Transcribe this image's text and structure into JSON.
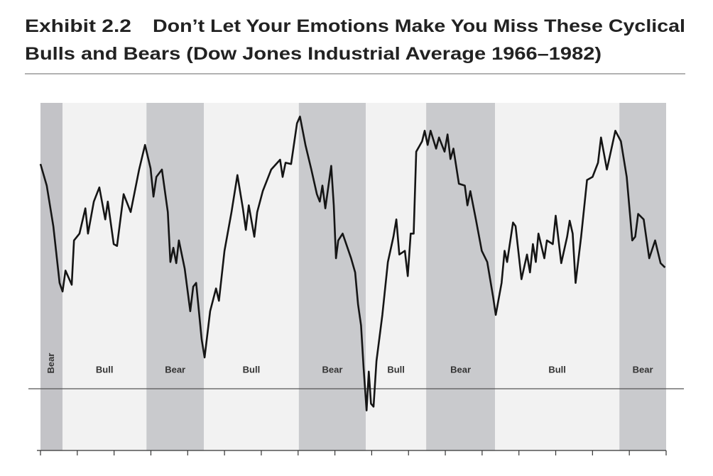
{
  "chart_data": {
    "type": "line",
    "exhibit": "Exhibit 2.2",
    "title_lines": [
      "Don’t Let Your Emotions Make You Miss These Cyclical",
      "Bulls and Bears (Dow Jones Industrial Average 1966–1982)"
    ],
    "regions": [
      {
        "label": "Bear",
        "start": 1966,
        "end": 1966.6,
        "color": "#c3c3c7"
      },
      {
        "label": "Bull",
        "start": 1966.6,
        "end": 1968.88,
        "color": "#f2f2f2"
      },
      {
        "label": "Bear",
        "start": 1968.88,
        "end": 1970.44,
        "color": "#c9cacd"
      },
      {
        "label": "Bull",
        "start": 1970.44,
        "end": 1973.02,
        "color": "#f2f2f2"
      },
      {
        "label": "Bear",
        "start": 1973.02,
        "end": 1974.84,
        "color": "#c9cacd"
      },
      {
        "label": "Bull",
        "start": 1974.84,
        "end": 1976.48,
        "color": "#f2f2f2"
      },
      {
        "label": "Bear",
        "start": 1976.48,
        "end": 1978.35,
        "color": "#c9cacd"
      },
      {
        "label": "Bull",
        "start": 1978.35,
        "end": 1981.73,
        "color": "#f2f2f2"
      },
      {
        "label": "Bear",
        "start": 1981.73,
        "end": 1983,
        "color": "#c9cacd"
      }
    ],
    "x": [
      1966.0,
      1966.17,
      1966.35,
      1966.52,
      1966.6,
      1966.68,
      1966.85,
      1966.91,
      1967.06,
      1967.22,
      1967.29,
      1967.45,
      1967.6,
      1967.76,
      1967.83,
      1967.99,
      1968.08,
      1968.26,
      1968.45,
      1968.68,
      1968.84,
      1968.99,
      1969.07,
      1969.15,
      1969.3,
      1969.46,
      1969.53,
      1969.61,
      1969.69,
      1969.76,
      1969.92,
      1970.07,
      1970.15,
      1970.23,
      1970.38,
      1970.46,
      1970.61,
      1970.77,
      1970.85,
      1971.0,
      1971.19,
      1971.35,
      1971.5,
      1971.58,
      1971.66,
      1971.81,
      1971.89,
      1972.04,
      1972.27,
      1972.51,
      1972.58,
      1972.66,
      1972.81,
      1972.97,
      1973.05,
      1973.2,
      1973.36,
      1973.51,
      1973.59,
      1973.66,
      1973.74,
      1973.9,
      1973.97,
      1974.03,
      1974.09,
      1974.21,
      1974.44,
      1974.55,
      1974.63,
      1974.71,
      1974.78,
      1974.86,
      1974.92,
      1974.98,
      1975.05,
      1975.13,
      1975.29,
      1975.44,
      1975.59,
      1975.67,
      1975.75,
      1975.9,
      1975.98,
      1976.06,
      1976.14,
      1976.21,
      1976.37,
      1976.44,
      1976.52,
      1976.6,
      1976.75,
      1976.83,
      1976.98,
      1977.06,
      1977.14,
      1977.22,
      1977.37,
      1977.53,
      1977.6,
      1977.68,
      1977.83,
      1977.99,
      1978.14,
      1978.3,
      1978.37,
      1978.53,
      1978.61,
      1978.68,
      1978.84,
      1978.91,
      1979.07,
      1979.22,
      1979.3,
      1979.38,
      1979.46,
      1979.53,
      1979.69,
      1979.76,
      1979.92,
      1980.0,
      1980.15,
      1980.31,
      1980.38,
      1980.46,
      1980.54,
      1980.69,
      1980.85,
      1981.0,
      1981.15,
      1981.23,
      1981.39,
      1981.62,
      1981.77,
      1981.93,
      1982.08,
      1982.16,
      1982.24,
      1982.39,
      1982.54,
      1982.7,
      1982.85,
      1982.97
    ],
    "values": [
      975,
      940,
      874,
      782,
      768,
      802,
      779,
      851,
      862,
      903,
      862,
      914,
      937,
      885,
      914,
      845,
      842,
      926,
      897,
      966,
      1006,
      968,
      922,
      954,
      966,
      897,
      816,
      839,
      814,
      851,
      805,
      736,
      776,
      782,
      690,
      661,
      736,
      773,
      753,
      834,
      897,
      957,
      903,
      868,
      908,
      857,
      897,
      931,
      966,
      982,
      954,
      977,
      975,
      1041,
      1052,
      1006,
      966,
      926,
      914,
      940,
      903,
      972,
      908,
      822,
      851,
      862,
      822,
      799,
      747,
      713,
      644,
      575,
      638,
      586,
      581,
      655,
      730,
      816,
      857,
      885,
      828,
      834,
      793,
      862,
      862,
      995,
      1012,
      1029,
      1006,
      1029,
      1000,
      1018,
      995,
      1023,
      983,
      1000,
      943,
      940,
      908,
      931,
      885,
      834,
      816,
      759,
      730,
      782,
      834,
      816,
      880,
      874,
      788,
      828,
      799,
      845,
      816,
      862,
      822,
      851,
      845,
      891,
      814,
      857,
      883,
      862,
      782,
      857,
      949,
      954,
      977,
      1018,
      966,
      1029,
      1012,
      954,
      851,
      857,
      894,
      885,
      822,
      851,
      814,
      807
    ],
    "color": "#151515",
    "xlim": [
      1966,
      1983
    ],
    "xticks": [
      1966,
      1967,
      1968,
      1969,
      1970,
      1971,
      1972,
      1973,
      1974,
      1975,
      1976,
      1977,
      1978,
      1979,
      1980,
      1981,
      1982,
      1983
    ],
    "ylim": [
      510,
      1080
    ]
  }
}
